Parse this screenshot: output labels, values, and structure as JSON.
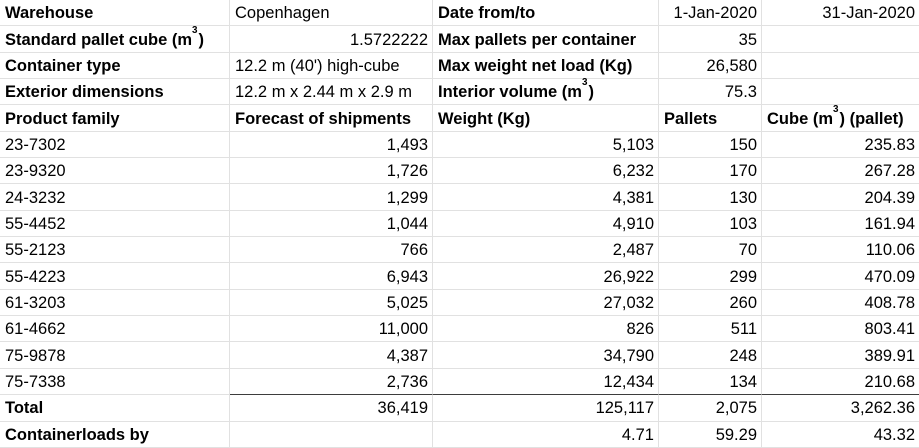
{
  "info": {
    "warehouse_label": "Warehouse",
    "warehouse_value": "Copenhagen",
    "date_label": "Date from/to",
    "date_from": "1-Jan-2020",
    "date_to": "31-Jan-2020",
    "pallet_cube_label_pre": "Standard pallet cube (m",
    "pallet_cube_label_sup": "3",
    "pallet_cube_label_post": ")",
    "pallet_cube_value": "1.5722222",
    "max_pallets_label": "Max pallets per container",
    "max_pallets_value": "35",
    "container_type_label": "Container type",
    "container_type_value": "12.2 m (40') high-cube",
    "max_weight_label": "Max weight net load (Kg)",
    "max_weight_value": "26,580",
    "exterior_dim_label": "Exterior dimensions",
    "exterior_dim_value": "12.2 m x 2.44 m x 2.9 m",
    "interior_volume_label_pre": "Interior volume (m",
    "interior_volume_label_sup": "3",
    "interior_volume_label_post": ")",
    "interior_volume_value": "75.3"
  },
  "table": {
    "headers": {
      "product_family": "Product family",
      "forecast": "Forecast of shipments",
      "weight": "Weight (Kg)",
      "pallets": "Pallets",
      "cube_pre": "Cube (m",
      "cube_sup": "3",
      "cube_post": ") (pallet)"
    },
    "rows": [
      {
        "family": "23-7302",
        "forecast": "1,493",
        "weight": "5,103",
        "pallets": "150",
        "cube": "235.83"
      },
      {
        "family": "23-9320",
        "forecast": "1,726",
        "weight": "6,232",
        "pallets": "170",
        "cube": "267.28"
      },
      {
        "family": "24-3232",
        "forecast": "1,299",
        "weight": "4,381",
        "pallets": "130",
        "cube": "204.39"
      },
      {
        "family": "55-4452",
        "forecast": "1,044",
        "weight": "4,910",
        "pallets": "103",
        "cube": "161.94"
      },
      {
        "family": "55-2123",
        "forecast": "766",
        "weight": "2,487",
        "pallets": "70",
        "cube": "110.06"
      },
      {
        "family": "55-4223",
        "forecast": "6,943",
        "weight": "26,922",
        "pallets": "299",
        "cube": "470.09"
      },
      {
        "family": "61-3203",
        "forecast": "5,025",
        "weight": "27,032",
        "pallets": "260",
        "cube": "408.78"
      },
      {
        "family": "61-4662",
        "forecast": "11,000",
        "weight": "826",
        "pallets": "511",
        "cube": "803.41"
      },
      {
        "family": "75-9878",
        "forecast": "4,387",
        "weight": "34,790",
        "pallets": "248",
        "cube": "389.91"
      },
      {
        "family": "75-7338",
        "forecast": "2,736",
        "weight": "12,434",
        "pallets": "134",
        "cube": "210.68"
      }
    ],
    "total": {
      "label": "Total",
      "forecast": "36,419",
      "weight": "125,117",
      "pallets": "2,075",
      "cube": "3,262.36"
    },
    "containerloads": {
      "label": "Containerloads by",
      "weight": "4.71",
      "pallets": "59.29",
      "cube": "43.32"
    }
  },
  "colors": {
    "gridline": "#e1e1e1",
    "total_rule": "#3d3d3d",
    "text": "#000000",
    "background": "#ffffff"
  }
}
